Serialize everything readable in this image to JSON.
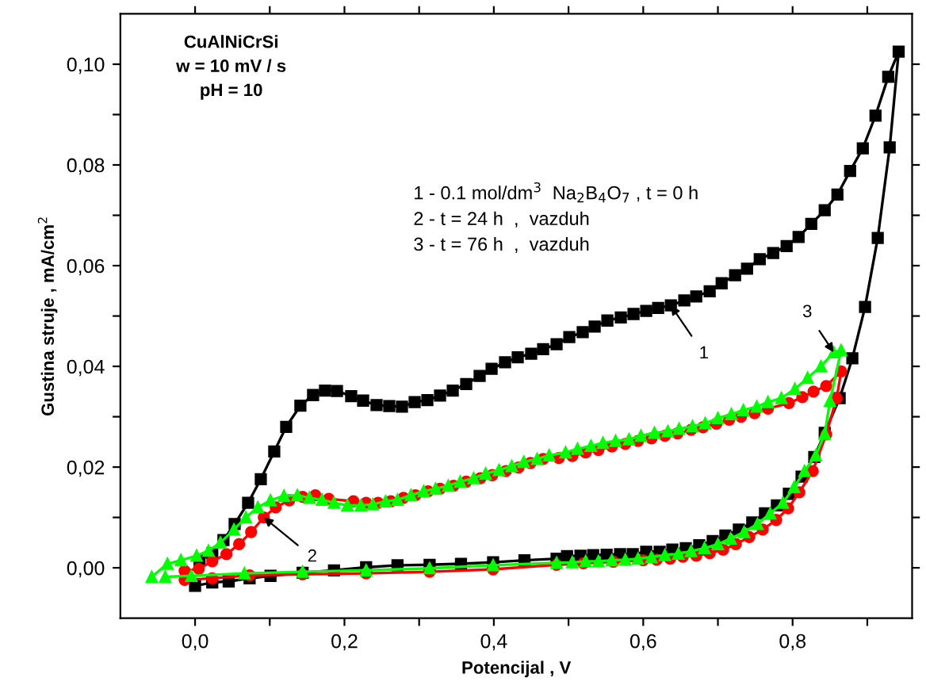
{
  "chart_data": {
    "type": "line",
    "xlabel": "Potencijal , V",
    "ylabel": "Gustina struje , mA/cm$^{2}$",
    "xlim": [
      -0.1,
      0.96
    ],
    "ylim": [
      -0.01,
      0.11
    ],
    "xticks": [
      {
        "value": 0.0,
        "label": "0,0"
      },
      {
        "value": 0.1,
        "label": null
      },
      {
        "value": 0.2,
        "label": "0,2"
      },
      {
        "value": 0.3,
        "label": null
      },
      {
        "value": 0.4,
        "label": "0,4"
      },
      {
        "value": 0.5,
        "label": null
      },
      {
        "value": 0.6,
        "label": "0,6"
      },
      {
        "value": 0.7,
        "label": null
      },
      {
        "value": 0.8,
        "label": "0,8"
      },
      {
        "value": 0.9,
        "label": null
      }
    ],
    "yticks": [
      {
        "value": 0.0,
        "label": "0,00"
      },
      {
        "value": 0.01,
        "label": null
      },
      {
        "value": 0.02,
        "label": "0,02"
      },
      {
        "value": 0.03,
        "label": null
      },
      {
        "value": 0.04,
        "label": "0,04"
      },
      {
        "value": 0.05,
        "label": null
      },
      {
        "value": 0.06,
        "label": "0,06"
      },
      {
        "value": 0.07,
        "label": null
      },
      {
        "value": 0.08,
        "label": "0,08"
      },
      {
        "value": 0.09,
        "label": null
      },
      {
        "value": 0.1,
        "label": "0,10"
      }
    ],
    "grid": false,
    "line_style": "solid",
    "series": [
      {
        "color": "#000000",
        "marker": "square",
        "x": [
          0.0,
          0.023,
          0.045,
          0.073,
          0.101,
          0.144,
          0.186,
          0.229,
          0.271,
          0.314,
          0.356,
          0.399,
          0.441,
          0.484,
          0.498,
          0.516,
          0.533,
          0.551,
          0.569,
          0.586,
          0.604,
          0.622,
          0.639,
          0.657,
          0.675,
          0.693,
          0.71,
          0.728,
          0.746,
          0.763,
          0.779,
          0.795,
          0.812,
          0.829,
          0.843,
          0.863,
          0.88,
          0.897,
          0.914,
          0.93,
          0.942,
          0.928,
          0.911,
          0.894,
          0.877,
          0.86,
          0.843,
          0.825,
          0.808,
          0.792,
          0.774,
          0.756,
          0.739,
          0.723,
          0.705,
          0.689,
          0.671,
          0.655,
          0.637,
          0.62,
          0.604,
          0.587,
          0.57,
          0.552,
          0.535,
          0.519,
          0.501,
          0.484,
          0.466,
          0.45,
          0.432,
          0.415,
          0.397,
          0.381,
          0.363,
          0.345,
          0.328,
          0.311,
          0.294,
          0.277,
          0.26,
          0.243,
          0.225,
          0.209,
          0.19,
          0.174,
          0.158,
          0.141,
          0.122,
          0.106,
          0.088,
          0.071,
          0.053,
          0.038,
          0.023,
          0.006
        ],
        "values": [
          -0.0036,
          -0.0029,
          -0.0027,
          -0.0021,
          -0.0016,
          -0.001,
          -0.0005,
          0.0001,
          0.0005,
          0.0006,
          0.0008,
          0.0011,
          0.0015,
          0.0018,
          0.0023,
          0.0024,
          0.0025,
          0.0026,
          0.0027,
          0.0027,
          0.0032,
          0.0032,
          0.0036,
          0.0039,
          0.0045,
          0.0053,
          0.0064,
          0.0076,
          0.009,
          0.0108,
          0.0124,
          0.0147,
          0.0181,
          0.022,
          0.0268,
          0.0337,
          0.0416,
          0.0518,
          0.0655,
          0.0835,
          0.1025,
          0.0975,
          0.0898,
          0.0833,
          0.0788,
          0.0741,
          0.071,
          0.0683,
          0.0657,
          0.0639,
          0.0625,
          0.0613,
          0.0594,
          0.0581,
          0.0565,
          0.0549,
          0.0539,
          0.0531,
          0.0521,
          0.0516,
          0.051,
          0.0504,
          0.0497,
          0.0491,
          0.0479,
          0.0468,
          0.0458,
          0.0444,
          0.0434,
          0.0425,
          0.0418,
          0.0408,
          0.0395,
          0.0381,
          0.0365,
          0.0352,
          0.0342,
          0.0333,
          0.0329,
          0.032,
          0.0321,
          0.0323,
          0.0332,
          0.0341,
          0.0351,
          0.0352,
          0.0343,
          0.0322,
          0.028,
          0.0231,
          0.0176,
          0.0129,
          0.0087,
          0.0055,
          0.0029,
          0.0015
        ]
      },
      {
        "color": "#ff0000",
        "marker": "circle",
        "x": [
          -0.014,
          0.023,
          0.073,
          0.144,
          0.229,
          0.314,
          0.399,
          0.484,
          0.52,
          0.56,
          0.6,
          0.618,
          0.636,
          0.653,
          0.671,
          0.689,
          0.707,
          0.724,
          0.742,
          0.76,
          0.778,
          0.794,
          0.809,
          0.827,
          0.845,
          0.859,
          0.865,
          0.845,
          0.828,
          0.813,
          0.795,
          0.767,
          0.749,
          0.731,
          0.715,
          0.698,
          0.68,
          0.664,
          0.646,
          0.629,
          0.611,
          0.593,
          0.576,
          0.558,
          0.54,
          0.523,
          0.505,
          0.487,
          0.466,
          0.449,
          0.433,
          0.416,
          0.398,
          0.382,
          0.363,
          0.346,
          0.328,
          0.312,
          0.295,
          0.279,
          0.262,
          0.245,
          0.229,
          0.212,
          0.179,
          0.161,
          0.144,
          0.126,
          0.108,
          0.092,
          0.075,
          0.059,
          0.042,
          0.023,
          0.005,
          -0.014
        ],
        "values": [
          -0.0024,
          -0.0021,
          -0.0015,
          -0.0013,
          -0.0011,
          -0.0008,
          -0.0003,
          0.0006,
          0.0009,
          0.0012,
          0.0015,
          0.0016,
          0.0018,
          0.0022,
          0.0024,
          0.0029,
          0.0036,
          0.0047,
          0.0061,
          0.0076,
          0.0095,
          0.0118,
          0.015,
          0.0192,
          0.0265,
          0.0337,
          0.039,
          0.0361,
          0.035,
          0.0339,
          0.0327,
          0.0316,
          0.0307,
          0.03,
          0.0294,
          0.0286,
          0.0279,
          0.0274,
          0.0267,
          0.0262,
          0.0257,
          0.0252,
          0.0246,
          0.0241,
          0.0234,
          0.0229,
          0.0222,
          0.0218,
          0.0216,
          0.0208,
          0.0199,
          0.0192,
          0.0184,
          0.0178,
          0.0171,
          0.0163,
          0.0157,
          0.0152,
          0.0144,
          0.0139,
          0.0132,
          0.0129,
          0.0129,
          0.0132,
          0.0137,
          0.0144,
          0.0141,
          0.0134,
          0.012,
          0.01,
          0.0071,
          0.0047,
          0.0027,
          0.0013,
          -0.0002,
          -0.0006
        ]
      },
      {
        "color": "#00ff00",
        "marker": "triangle",
        "x": [
          -0.04,
          -0.005,
          0.066,
          0.144,
          0.229,
          0.314,
          0.399,
          0.484,
          0.505,
          0.523,
          0.54,
          0.558,
          0.576,
          0.593,
          0.611,
          0.629,
          0.647,
          0.664,
          0.682,
          0.7,
          0.717,
          0.735,
          0.753,
          0.77,
          0.787,
          0.802,
          0.816,
          0.831,
          0.843,
          0.85,
          0.865,
          0.855,
          0.838,
          0.82,
          0.803,
          0.785,
          0.767,
          0.752,
          0.734,
          0.718,
          0.7,
          0.683,
          0.666,
          0.648,
          0.633,
          0.615,
          0.597,
          0.581,
          0.563,
          0.546,
          0.53,
          0.512,
          0.496,
          0.474,
          0.458,
          0.44,
          0.424,
          0.407,
          0.389,
          0.373,
          0.355,
          0.339,
          0.322,
          0.306,
          0.289,
          0.271,
          0.255,
          0.238,
          0.222,
          0.204,
          0.186,
          0.17,
          0.153,
          0.137,
          0.119,
          0.101,
          0.084,
          0.068,
          0.052,
          0.034,
          0.018,
          0.002,
          -0.019,
          -0.037,
          -0.058
        ],
        "values": [
          -0.0018,
          -0.0016,
          -0.0011,
          -0.0008,
          -0.0005,
          -0.0001,
          0.0005,
          0.001,
          0.0011,
          0.0013,
          0.0013,
          0.0015,
          0.0016,
          0.0018,
          0.0021,
          0.0025,
          0.0028,
          0.0033,
          0.0039,
          0.0047,
          0.0058,
          0.0071,
          0.0087,
          0.0108,
          0.0129,
          0.016,
          0.0192,
          0.0223,
          0.0266,
          0.0331,
          0.0432,
          0.0428,
          0.04,
          0.0377,
          0.0355,
          0.0337,
          0.0329,
          0.032,
          0.0313,
          0.0305,
          0.0297,
          0.0287,
          0.0281,
          0.0276,
          0.0271,
          0.0268,
          0.0262,
          0.0255,
          0.0252,
          0.0248,
          0.0242,
          0.0236,
          0.0229,
          0.0223,
          0.0216,
          0.021,
          0.0202,
          0.0194,
          0.0187,
          0.0178,
          0.0171,
          0.0163,
          0.0157,
          0.0152,
          0.0144,
          0.0135,
          0.0132,
          0.0126,
          0.0124,
          0.0124,
          0.0129,
          0.0135,
          0.0139,
          0.0144,
          0.0143,
          0.0134,
          0.012,
          0.01,
          0.0076,
          0.005,
          0.0034,
          0.0024,
          0.0015,
          0.0008,
          -0.0018
        ]
      }
    ],
    "annotations": [
      "CuAlNiCrSi\nw = 10 mV / s\npH = 10",
      "1 - 0.1 mol/dm$^{3}$  Na$_{2}$B$_{4}$O$_{7}$ , t = 0 h\n2 - t = 24 h  ,  vazduh\n3 - t = 76 h  ,  vazduh",
      {
        "text": "1",
        "x": 0.637,
        "y": 0.0521
      },
      {
        "text": "2",
        "x": 0.092,
        "y": 0.01
      },
      {
        "text": "3",
        "x": 0.855,
        "y": 0.0428
      }
    ]
  }
}
